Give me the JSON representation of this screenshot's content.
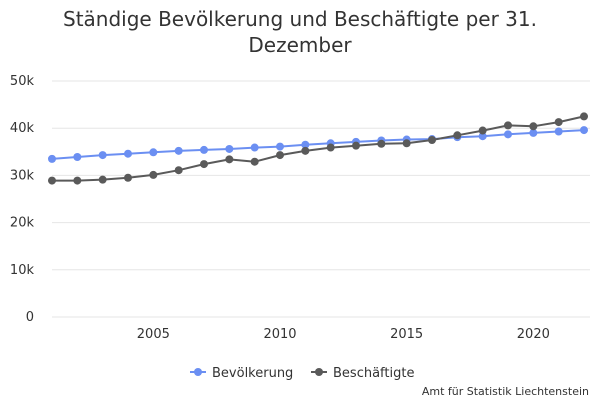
{
  "chart_data": {
    "type": "line",
    "title": "Ständige Bevölkerung und Beschäftigte per 31. Dezember",
    "xlabel": "",
    "ylabel": "",
    "x": [
      2001,
      2002,
      2003,
      2004,
      2005,
      2006,
      2007,
      2008,
      2009,
      2010,
      2011,
      2012,
      2013,
      2014,
      2015,
      2016,
      2017,
      2018,
      2019,
      2020,
      2021,
      2022
    ],
    "xlim": [
      2001,
      2022
    ],
    "ylim": [
      0,
      50000
    ],
    "x_ticks": [
      2005,
      2010,
      2015,
      2020
    ],
    "y_ticks": [
      0,
      10000,
      20000,
      30000,
      40000,
      50000
    ],
    "y_tick_labels": [
      "0",
      "10k",
      "20k",
      "30k",
      "40k",
      "50k"
    ],
    "grid": true,
    "legend_position": "bottom-center",
    "series": [
      {
        "name": "Bevölkerung",
        "color": "#6b8ff2",
        "values": [
          33500,
          33900,
          34300,
          34600,
          34900,
          35200,
          35400,
          35600,
          35900,
          36100,
          36500,
          36800,
          37100,
          37400,
          37600,
          37700,
          38100,
          38300,
          38700,
          39000,
          39300,
          39600
        ]
      },
      {
        "name": "Beschäftigte",
        "color": "#5a5a5a",
        "values": [
          28900,
          28900,
          29100,
          29500,
          30100,
          31100,
          32400,
          33400,
          32900,
          34300,
          35200,
          35900,
          36300,
          36700,
          36800,
          37500,
          38500,
          39500,
          40600,
          40400,
          41300,
          42500
        ]
      }
    ]
  },
  "credit": "Amt für Statistik Liechtenstein"
}
